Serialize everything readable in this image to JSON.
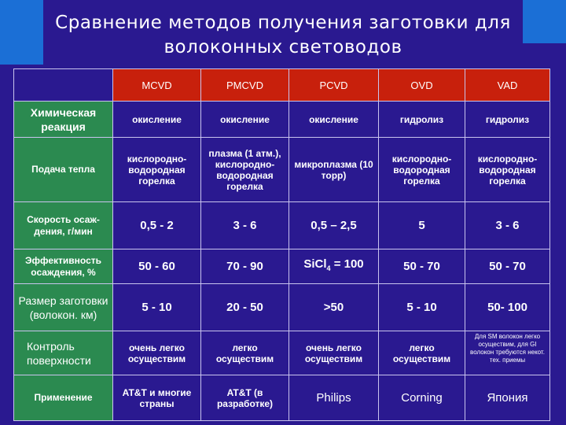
{
  "title_line1": "Сравнение методов получения заготовки для",
  "title_line2": "волоконных световодов",
  "colors": {
    "background": "#2a1990",
    "header": "#c8200c",
    "row_heads": "#2b8a50",
    "accent": "#1b6fd6"
  },
  "columns": [
    "MCVD",
    "PMCVD",
    "PCVD",
    "OVD",
    "VAD"
  ],
  "rows": [
    {
      "label": "Химическая реакция",
      "cells": [
        "окисление",
        "окисление",
        "окисление",
        "гидролиз",
        "гидролиз"
      ]
    },
    {
      "label": "Подача тепла",
      "cells": [
        "кислородно-водородная горелка",
        "плазма (1 атм.), кислородно-водородная горелка",
        "микроплазма (10 торр)",
        "кислородно-водородная горелка",
        "кислородно-водородная горелка"
      ]
    },
    {
      "label": "Скорость осаж-дения, г/мин",
      "cells": [
        "0,5 - 2",
        "3 - 6",
        "0,5 – 2,5",
        "5",
        "3 - 6"
      ]
    },
    {
      "label": "Эффективность осаждения, %",
      "cells": [
        "50 - 60",
        "70 - 90",
        "SiCl",
        "50 - 70",
        "50 - 70"
      ],
      "sicl_sub": "4",
      "sicl_rest": " = 100"
    },
    {
      "label": "Размер заготовки (волокон. км)",
      "cells": [
        "5 - 10",
        "20 - 50",
        ">50",
        "5 - 10",
        "50- 100"
      ]
    },
    {
      "label": "Контроль поверхности",
      "cells": [
        "очень легко осуществим",
        "легко осуществим",
        "очень легко осуществим",
        "легко осуществим",
        "Для SM волокон легко осуществим, для GI волокон требуются некот. тех. приемы"
      ]
    },
    {
      "label": "Применение",
      "cells": [
        "AT&T и многие страны",
        "AT&T (в разработке)",
        "Philips",
        "Corning",
        "Япония"
      ]
    }
  ]
}
